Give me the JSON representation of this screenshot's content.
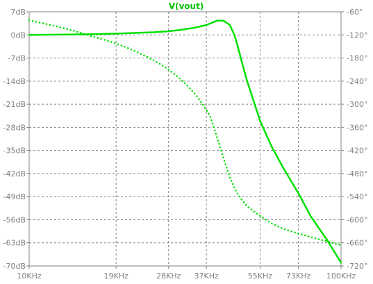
{
  "chart_data": {
    "type": "line",
    "title": "V(vout)",
    "x_scale": "log",
    "xlim": [
      10000,
      100000
    ],
    "x_ticks": [
      10000,
      19000,
      28000,
      37000,
      55000,
      73000,
      100000
    ],
    "x_tick_labels": [
      "10KHz",
      "19KHz",
      "28KHz",
      "37KHz",
      "55KHz",
      "73KHz",
      "100KHz"
    ],
    "ylim": [
      -70,
      7
    ],
    "y_ticks": [
      7,
      0,
      -7,
      -14,
      -21,
      -28,
      -35,
      -42,
      -49,
      -56,
      -63,
      -70
    ],
    "y_tick_labels": [
      "7dB",
      "0dB",
      "-7dB",
      "-14dB",
      "-21dB",
      "-28dB",
      "-35dB",
      "-42dB",
      "-49dB",
      "-56dB",
      "-63dB",
      "-70dB"
    ],
    "y2lim": [
      -720,
      -60
    ],
    "y2_ticks": [
      -60,
      -120,
      -180,
      -240,
      -300,
      -360,
      -420,
      -480,
      -540,
      -600,
      -660,
      -720
    ],
    "y2_tick_labels": [
      "-60°",
      "-120°",
      "-180°",
      "-240°",
      "-300°",
      "-360°",
      "-420°",
      "-480°",
      "-540°",
      "-600°",
      "-660°",
      "-720°"
    ],
    "grid": true,
    "series": [
      {
        "role": "magnitude",
        "axis": "left",
        "style": "solid",
        "color": "#00e000",
        "x": [
          10000,
          13000,
          16000,
          19000,
          22000,
          25000,
          28000,
          31000,
          34000,
          37000,
          40000,
          42000,
          44000,
          45500,
          46500,
          48000,
          50000,
          55000,
          60000,
          65000,
          73000,
          80000,
          90000,
          100000
        ],
        "y": [
          0,
          0.1,
          0.2,
          0.4,
          0.6,
          0.8,
          1.1,
          1.6,
          2.2,
          3,
          4.3,
          4.3,
          3,
          0,
          -3,
          -8,
          -14,
          -26,
          -34,
          -40,
          -48,
          -55,
          -62,
          -69
        ]
      },
      {
        "role": "phase",
        "axis": "right",
        "style": "dotted",
        "color": "#00e000",
        "x": [
          10000,
          12000,
          14000,
          16000,
          18000,
          20000,
          22000,
          24000,
          26000,
          28000,
          30000,
          32000,
          34000,
          36000,
          38000,
          40000,
          42000,
          44000,
          46000,
          48000,
          50000,
          55000,
          60000,
          65000,
          73000,
          80000,
          90000,
          100000
        ],
        "y": [
          -82,
          -96,
          -110,
          -124,
          -136,
          -149,
          -163,
          -178,
          -193,
          -210,
          -229,
          -250,
          -273,
          -300,
          -330,
          -385,
          -440,
          -490,
          -525,
          -548,
          -565,
          -590,
          -610,
          -623,
          -636,
          -645,
          -656,
          -666
        ]
      }
    ]
  }
}
